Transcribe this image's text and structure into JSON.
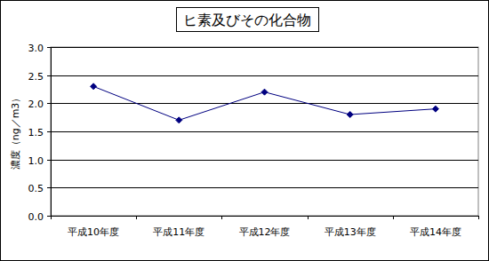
{
  "chart_data": {
    "type": "line",
    "title": "ヒ素及びその化合物",
    "y_label": "濃度（ng／m3）",
    "categories": [
      "平成10年度",
      "平成11年度",
      "平成12年度",
      "平成13年度",
      "平成14年度"
    ],
    "values": [
      2.3,
      1.7,
      2.2,
      1.8,
      1.9
    ],
    "color": "#000080",
    "marker": "diamond",
    "ylim": [
      0,
      3
    ],
    "yticks": [
      {
        "value": 0,
        "label": "0.0"
      },
      0.5,
      {
        "value": 1,
        "label": "1.0"
      },
      1.5,
      {
        "value": 2,
        "label": "2.0"
      },
      2.5,
      {
        "value": 3,
        "label": "3.0"
      }
    ],
    "grid": true
  }
}
